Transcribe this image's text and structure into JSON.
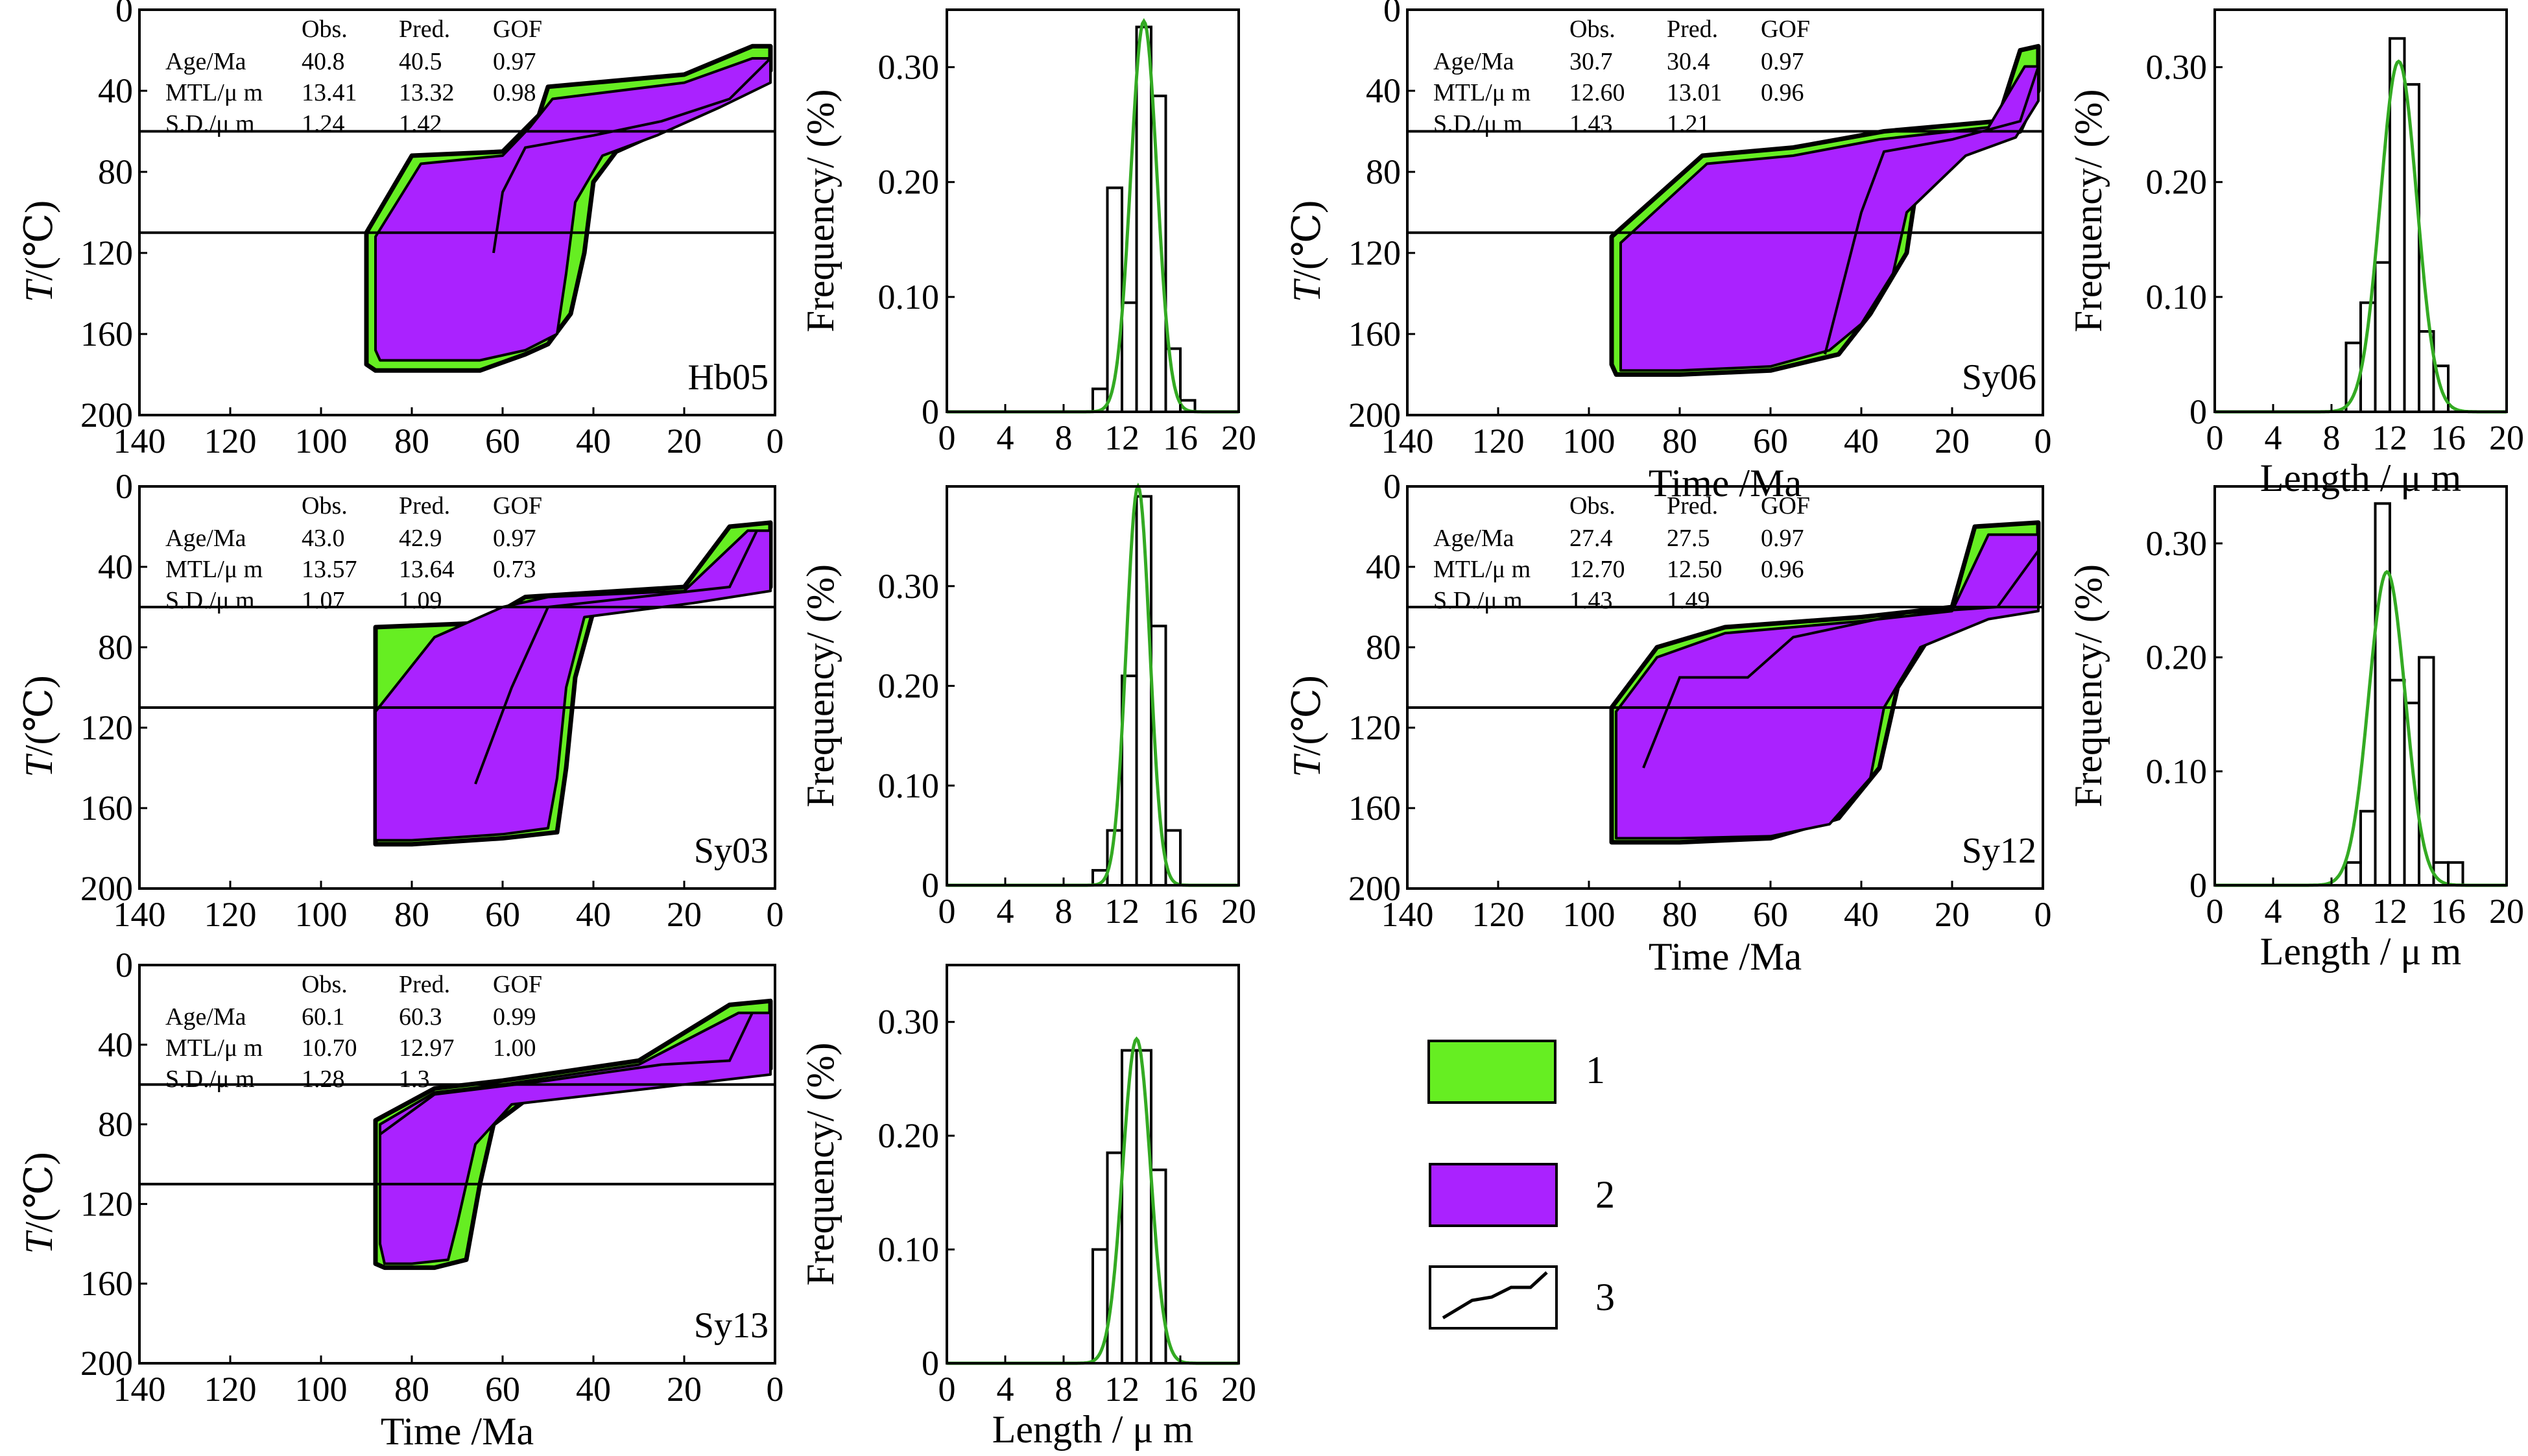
{
  "figure": {
    "legend": [
      {
        "id": "1",
        "label": "1",
        "fill": "#66ee22"
      },
      {
        "id": "2",
        "label": "2",
        "fill": "#aa22ff"
      },
      {
        "id": "3",
        "label": "3"
      }
    ],
    "axis_labels": {
      "T": "T",
      "T_unit": "/(℃)",
      "time": "Time /Ma",
      "freq": "Frequency/ (%)",
      "length": "Length / μ m"
    },
    "colors": {
      "green": "#66ee22",
      "purple": "#aa22ff",
      "fit": "#33aa22"
    }
  },
  "stats_headers": {
    "obs": "Obs.",
    "pred": "Pred.",
    "gof": "GOF"
  },
  "chart_data": [
    {
      "type": "area",
      "sample": "Hb05",
      "xlabel": "",
      "ylabel": "T/(℃)",
      "xlim": [
        140,
        0
      ],
      "ylim": [
        0,
        200
      ],
      "grid": false,
      "xticks": [
        "140",
        "120",
        "100",
        "80",
        "60",
        "40",
        "20",
        "0"
      ],
      "yticks": [
        "0",
        "40",
        "80",
        "120",
        "160",
        "200"
      ],
      "hlines": [
        60,
        110
      ],
      "stats": [
        {
          "label": "Age/Ma",
          "obs": "40.8",
          "pred": "40.5",
          "gof": "0.97"
        },
        {
          "label": "MTL/μ m",
          "obs": "13.41",
          "pred": "13.32",
          "gof": "0.98"
        },
        {
          "label": "S.D./μ m",
          "obs": "1.24",
          "pred": "1.42",
          "gof": ""
        }
      ],
      "green_envelope": [
        [
          90,
          110
        ],
        [
          80,
          72
        ],
        [
          60,
          70
        ],
        [
          52,
          52
        ],
        [
          50,
          38
        ],
        [
          20,
          32
        ],
        [
          5,
          18
        ],
        [
          1,
          18
        ],
        [
          1,
          30
        ],
        [
          10,
          44
        ],
        [
          25,
          60
        ],
        [
          35,
          70
        ],
        [
          40,
          85
        ],
        [
          42,
          120
        ],
        [
          45,
          150
        ],
        [
          50,
          165
        ],
        [
          55,
          170
        ],
        [
          65,
          178
        ],
        [
          88,
          178
        ],
        [
          90,
          175
        ]
      ],
      "purple_envelope": [
        [
          88,
          112
        ],
        [
          78,
          76
        ],
        [
          60,
          72
        ],
        [
          54,
          58
        ],
        [
          49,
          44
        ],
        [
          20,
          36
        ],
        [
          5,
          24
        ],
        [
          1,
          24
        ],
        [
          1,
          36
        ],
        [
          12,
          48
        ],
        [
          26,
          62
        ],
        [
          38,
          72
        ],
        [
          44,
          95
        ],
        [
          46,
          130
        ],
        [
          48,
          160
        ],
        [
          55,
          168
        ],
        [
          65,
          173
        ],
        [
          87,
          173
        ],
        [
          88,
          168
        ]
      ],
      "best_path": [
        [
          62,
          120
        ],
        [
          60,
          90
        ],
        [
          55,
          68
        ],
        [
          40,
          62
        ],
        [
          25,
          55
        ],
        [
          10,
          44
        ],
        [
          1,
          24
        ]
      ]
    },
    {
      "type": "bar",
      "sample": "Hb05",
      "xlabel": "",
      "ylabel": "Frequency/ (%)",
      "xlim": [
        0,
        20
      ],
      "ylim": [
        0,
        0.35
      ],
      "xticks": [
        "0",
        "4",
        "8",
        "12",
        "16",
        "20"
      ],
      "yticks": [
        "0",
        "0.10",
        "0.20",
        "0.30"
      ],
      "bin_starts": [
        10,
        11,
        12,
        13,
        14,
        15,
        16
      ],
      "values": [
        0.02,
        0.195,
        0.095,
        0.335,
        0.275,
        0.055,
        0.01
      ],
      "fit_peak": {
        "mean": 13.5,
        "sd": 0.9,
        "height": 0.34
      }
    },
    {
      "type": "area",
      "sample": "Sy06",
      "xlabel": "Time /Ma",
      "ylabel": "T/(℃)",
      "xlim": [
        140,
        0
      ],
      "ylim": [
        0,
        200
      ],
      "grid": false,
      "xticks": [
        "140",
        "120",
        "100",
        "80",
        "60",
        "40",
        "20",
        "0"
      ],
      "yticks": [
        "0",
        "40",
        "80",
        "120",
        "160",
        "200"
      ],
      "hlines": [
        60,
        110
      ],
      "stats": [
        {
          "label": "Age/Ma",
          "obs": "30.7",
          "pred": "30.4",
          "gof": "0.97"
        },
        {
          "label": "MTL/μ m",
          "obs": "12.60",
          "pred": "13.01",
          "gof": "0.96"
        },
        {
          "label": "S.D./μ m",
          "obs": "1.43",
          "pred": "1.21",
          "gof": ""
        }
      ],
      "green_envelope": [
        [
          95,
          112
        ],
        [
          75,
          72
        ],
        [
          55,
          68
        ],
        [
          35,
          60
        ],
        [
          10,
          55
        ],
        [
          5,
          20
        ],
        [
          1,
          18
        ],
        [
          1,
          40
        ],
        [
          5,
          60
        ],
        [
          15,
          68
        ],
        [
          28,
          90
        ],
        [
          30,
          120
        ],
        [
          38,
          150
        ],
        [
          45,
          170
        ],
        [
          60,
          178
        ],
        [
          80,
          180
        ],
        [
          94,
          180
        ],
        [
          95,
          175
        ]
      ],
      "purple_envelope": [
        [
          93,
          115
        ],
        [
          74,
          76
        ],
        [
          55,
          72
        ],
        [
          36,
          64
        ],
        [
          12,
          58
        ],
        [
          4,
          28
        ],
        [
          1,
          28
        ],
        [
          1,
          45
        ],
        [
          6,
          63
        ],
        [
          17,
          72
        ],
        [
          30,
          100
        ],
        [
          33,
          130
        ],
        [
          40,
          155
        ],
        [
          47,
          168
        ],
        [
          60,
          176
        ],
        [
          80,
          178
        ],
        [
          93,
          178
        ],
        [
          93,
          170
        ]
      ],
      "best_path": [
        [
          48,
          170
        ],
        [
          40,
          100
        ],
        [
          35,
          70
        ],
        [
          20,
          64
        ],
        [
          5,
          55
        ],
        [
          1,
          28
        ]
      ]
    },
    {
      "type": "bar",
      "sample": "Sy06",
      "xlabel": "Length / μ m",
      "ylabel": "Frequency/ (%)",
      "xlim": [
        0,
        20
      ],
      "ylim": [
        0,
        0.35
      ],
      "xticks": [
        "0",
        "4",
        "8",
        "12",
        "16",
        "20"
      ],
      "yticks": [
        "0",
        "0.10",
        "0.20",
        "0.30"
      ],
      "bin_starts": [
        9,
        10,
        11,
        12,
        13,
        14,
        15
      ],
      "values": [
        0.06,
        0.095,
        0.13,
        0.325,
        0.285,
        0.07,
        0.04
      ],
      "fit_peak": {
        "mean": 12.6,
        "sd": 1.25,
        "height": 0.305
      }
    },
    {
      "type": "area",
      "sample": "Sy03",
      "xlabel": "",
      "ylabel": "T/(℃)",
      "xlim": [
        140,
        0
      ],
      "ylim": [
        0,
        200
      ],
      "grid": false,
      "xticks": [
        "140",
        "120",
        "100",
        "80",
        "60",
        "40",
        "20",
        "0"
      ],
      "yticks": [
        "0",
        "40",
        "80",
        "120",
        "160",
        "200"
      ],
      "hlines": [
        60,
        110
      ],
      "stats": [
        {
          "label": "Age/Ma",
          "obs": "43.0",
          "pred": "42.9",
          "gof": "0.97"
        },
        {
          "label": "MTL/μ m",
          "obs": "13.57",
          "pred": "13.64",
          "gof": "0.73"
        },
        {
          "label": "S.D./μ m",
          "obs": "1.07",
          "pred": "1.09",
          "gof": ""
        }
      ],
      "green_envelope": [
        [
          88,
          70
        ],
        [
          65,
          68
        ],
        [
          55,
          55
        ],
        [
          20,
          50
        ],
        [
          10,
          20
        ],
        [
          1,
          18
        ],
        [
          1,
          50
        ],
        [
          15,
          56
        ],
        [
          40,
          62
        ],
        [
          44,
          95
        ],
        [
          46,
          140
        ],
        [
          48,
          172
        ],
        [
          60,
          175
        ],
        [
          80,
          178
        ],
        [
          88,
          178
        ]
      ],
      "purple_envelope": [
        [
          88,
          112
        ],
        [
          75,
          75
        ],
        [
          60,
          60
        ],
        [
          50,
          55
        ],
        [
          20,
          52
        ],
        [
          6,
          22
        ],
        [
          1,
          22
        ],
        [
          1,
          52
        ],
        [
          18,
          58
        ],
        [
          42,
          65
        ],
        [
          46,
          100
        ],
        [
          48,
          145
        ],
        [
          50,
          170
        ],
        [
          60,
          173
        ],
        [
          80,
          176
        ],
        [
          88,
          176
        ]
      ],
      "best_path": [
        [
          66,
          148
        ],
        [
          58,
          100
        ],
        [
          50,
          60
        ],
        [
          30,
          55
        ],
        [
          10,
          50
        ],
        [
          4,
          22
        ]
      ]
    },
    {
      "type": "bar",
      "sample": "Sy03",
      "xlabel": "",
      "ylabel": "Frequency/ (%)",
      "xlim": [
        0,
        20
      ],
      "ylim": [
        0,
        0.4
      ],
      "xticks": [
        "0",
        "4",
        "8",
        "12",
        "16",
        "20"
      ],
      "yticks": [
        "0",
        "0.10",
        "0.20",
        "0.30"
      ],
      "bin_starts": [
        10,
        11,
        12,
        13,
        14,
        15
      ],
      "values": [
        0.015,
        0.055,
        0.21,
        0.39,
        0.26,
        0.055
      ],
      "fit_peak": {
        "mean": 13.1,
        "sd": 0.8,
        "height": 0.4
      }
    },
    {
      "type": "area",
      "sample": "Sy12",
      "xlabel": "Time /Ma",
      "ylabel": "T/(℃)",
      "xlim": [
        140,
        0
      ],
      "ylim": [
        0,
        200
      ],
      "grid": false,
      "xticks": [
        "140",
        "120",
        "100",
        "80",
        "60",
        "40",
        "20",
        "0"
      ],
      "yticks": [
        "0",
        "40",
        "80",
        "120",
        "160",
        "200"
      ],
      "hlines": [
        60,
        110
      ],
      "stats": [
        {
          "label": "Age/Ma",
          "obs": "27.4",
          "pred": "27.5",
          "gof": "0.97"
        },
        {
          "label": "MTL/μ m",
          "obs": "12.70",
          "pred": "12.50",
          "gof": "0.96"
        },
        {
          "label": "S.D./μ m",
          "obs": "1.43",
          "pred": "1.49",
          "gof": ""
        }
      ],
      "green_envelope": [
        [
          95,
          110
        ],
        [
          85,
          80
        ],
        [
          70,
          70
        ],
        [
          40,
          65
        ],
        [
          20,
          60
        ],
        [
          15,
          20
        ],
        [
          1,
          18
        ],
        [
          1,
          58
        ],
        [
          10,
          62
        ],
        [
          25,
          75
        ],
        [
          32,
          100
        ],
        [
          36,
          140
        ],
        [
          45,
          165
        ],
        [
          60,
          175
        ],
        [
          80,
          177
        ],
        [
          95,
          177
        ]
      ],
      "purple_envelope": [
        [
          94,
          112
        ],
        [
          85,
          85
        ],
        [
          70,
          73
        ],
        [
          40,
          67
        ],
        [
          20,
          62
        ],
        [
          12,
          24
        ],
        [
          1,
          24
        ],
        [
          1,
          62
        ],
        [
          12,
          66
        ],
        [
          27,
          80
        ],
        [
          35,
          110
        ],
        [
          38,
          145
        ],
        [
          47,
          168
        ],
        [
          60,
          174
        ],
        [
          80,
          175
        ],
        [
          94,
          175
        ]
      ],
      "best_path": [
        [
          88,
          140
        ],
        [
          80,
          95
        ],
        [
          65,
          95
        ],
        [
          55,
          75
        ],
        [
          30,
          63
        ],
        [
          10,
          60
        ],
        [
          1,
          32
        ]
      ]
    },
    {
      "type": "bar",
      "sample": "Sy12",
      "xlabel": "Length / μ m",
      "ylabel": "Frequency/ (%)",
      "xlim": [
        0,
        20
      ],
      "ylim": [
        0,
        0.35
      ],
      "xticks": [
        "0",
        "4",
        "8",
        "12",
        "16",
        "20"
      ],
      "yticks": [
        "0",
        "0.10",
        "0.20",
        "0.30"
      ],
      "bin_starts": [
        9,
        10,
        11,
        12,
        13,
        14,
        15,
        16
      ],
      "values": [
        0.02,
        0.065,
        0.335,
        0.18,
        0.16,
        0.2,
        0.02,
        0.02
      ],
      "fit_peak": {
        "mean": 11.8,
        "sd": 1.25,
        "height": 0.275
      }
    },
    {
      "type": "area",
      "sample": "Sy13",
      "xlabel": "Time /Ma",
      "ylabel": "T/(℃)",
      "xlim": [
        140,
        0
      ],
      "ylim": [
        0,
        200
      ],
      "grid": false,
      "xticks": [
        "140",
        "120",
        "100",
        "80",
        "60",
        "40",
        "20",
        "0"
      ],
      "yticks": [
        "0",
        "40",
        "80",
        "120",
        "160",
        "200"
      ],
      "hlines": [
        60,
        110
      ],
      "stats": [
        {
          "label": "Age/Ma",
          "obs": "60.1",
          "pred": "60.3",
          "gof": "0.99"
        },
        {
          "label": "MTL/μ m",
          "obs": "10.70",
          "pred": "12.97",
          "gof": "1.00"
        },
        {
          "label": "S.D./μ m",
          "obs": "1.28",
          "pred": "1.3",
          "gof": ""
        }
      ],
      "green_envelope": [
        [
          88,
          78
        ],
        [
          75,
          62
        ],
        [
          60,
          58
        ],
        [
          30,
          48
        ],
        [
          10,
          20
        ],
        [
          1,
          18
        ],
        [
          1,
          52
        ],
        [
          20,
          58
        ],
        [
          55,
          68
        ],
        [
          62,
          80
        ],
        [
          65,
          110
        ],
        [
          68,
          148
        ],
        [
          75,
          152
        ],
        [
          86,
          152
        ],
        [
          88,
          150
        ]
      ],
      "purple_envelope": [
        [
          87,
          80
        ],
        [
          75,
          64
        ],
        [
          60,
          60
        ],
        [
          30,
          50
        ],
        [
          8,
          24
        ],
        [
          1,
          24
        ],
        [
          1,
          55
        ],
        [
          20,
          60
        ],
        [
          58,
          70
        ],
        [
          66,
          90
        ],
        [
          70,
          130
        ],
        [
          72,
          148
        ],
        [
          80,
          150
        ],
        [
          86,
          150
        ],
        [
          87,
          140
        ]
      ],
      "best_path": [
        [
          87,
          85
        ],
        [
          75,
          65
        ],
        [
          50,
          58
        ],
        [
          25,
          50
        ],
        [
          10,
          48
        ],
        [
          5,
          24
        ]
      ]
    },
    {
      "type": "bar",
      "sample": "Sy13",
      "xlabel": "Length / μ m",
      "ylabel": "Frequency/ (%)",
      "xlim": [
        0,
        20
      ],
      "ylim": [
        0,
        0.35
      ],
      "xticks": [
        "0",
        "4",
        "8",
        "12",
        "16",
        "20"
      ],
      "yticks": [
        "0",
        "0.10",
        "0.20",
        "0.30"
      ],
      "bin_starts": [
        10,
        11,
        12,
        13,
        14
      ],
      "values": [
        0.1,
        0.185,
        0.275,
        0.275,
        0.17
      ],
      "fit_peak": {
        "mean": 13.0,
        "sd": 0.95,
        "height": 0.285
      }
    }
  ]
}
